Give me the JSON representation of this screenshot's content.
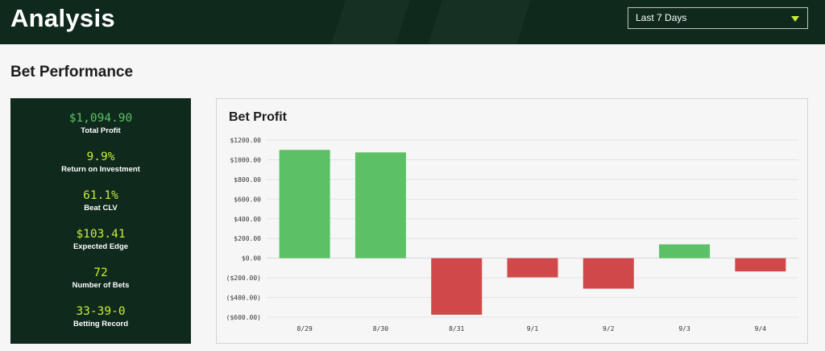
{
  "header": {
    "title": "Analysis",
    "date_range": {
      "selected": "Last 7 Days"
    }
  },
  "section": {
    "title": "Bet Performance"
  },
  "stats": [
    {
      "value": "$1,094.90",
      "label": "Total Profit",
      "accent": "#5cc066"
    },
    {
      "value": "9.9%",
      "label": "Return on Investment",
      "accent": "#c9ea3a"
    },
    {
      "value": "61.1%",
      "label": "Beat CLV",
      "accent": "#c9ea3a"
    },
    {
      "value": "$103.41",
      "label": "Expected Edge",
      "accent": "#c9ea3a"
    },
    {
      "value": "72",
      "label": "Number of Bets",
      "accent": "#c9ea3a"
    },
    {
      "value": "33-39-0",
      "label": "Betting Record",
      "accent": "#c9ea3a"
    }
  ],
  "chart_data": {
    "type": "bar",
    "title": "Bet Profit",
    "categories": [
      "8/29",
      "8/30",
      "8/31",
      "9/1",
      "9/2",
      "9/3",
      "9/4"
    ],
    "values": [
      1100,
      1075,
      -575,
      -195,
      -310,
      140,
      -135
    ],
    "y_ticks": [
      {
        "value": 1200,
        "label": "$1200.00"
      },
      {
        "value": 1000,
        "label": "$1000.00"
      },
      {
        "value": 800,
        "label": "$800.00"
      },
      {
        "value": 600,
        "label": "$600.00"
      },
      {
        "value": 400,
        "label": "$400.00"
      },
      {
        "value": 200,
        "label": "$200.00"
      },
      {
        "value": 0,
        "label": "$0.00"
      },
      {
        "value": -200,
        "label": "($200.00)"
      },
      {
        "value": -400,
        "label": "($400.00)"
      },
      {
        "value": -600,
        "label": "($600.00)"
      }
    ],
    "ylim": [
      -600,
      1200
    ],
    "grid": true,
    "colors": {
      "positive": "#5cc066",
      "negative": "#d0484a"
    }
  }
}
